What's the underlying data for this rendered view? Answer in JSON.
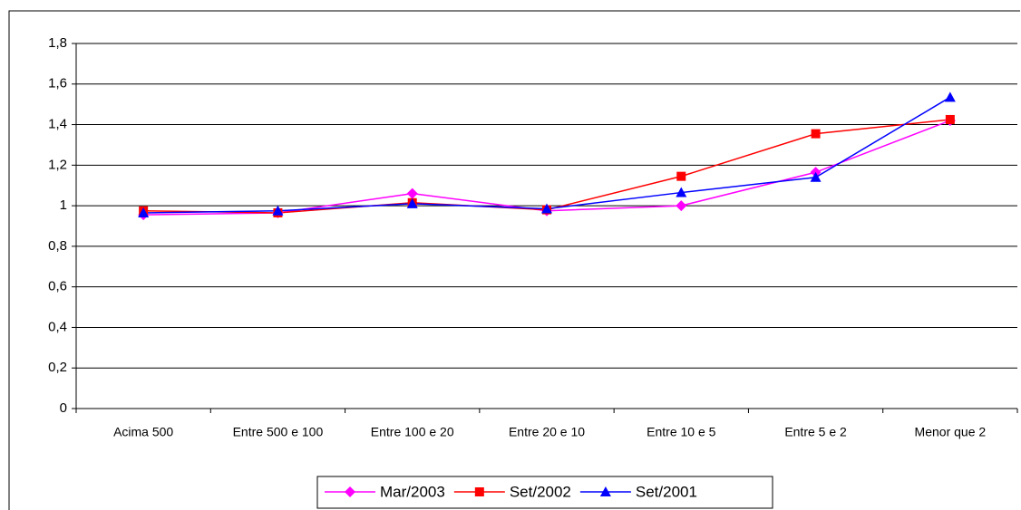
{
  "chart_data": {
    "type": "line",
    "categories": [
      "Acima 500",
      "Entre 500 e 100",
      "Entre 100 e 20",
      "Entre 20 e 10",
      "Entre 10 e 5",
      "Entre 5 e 2",
      "Menor que 2"
    ],
    "series": [
      {
        "name": "Mar/2003",
        "color": "#ff00ff",
        "marker": "diamond",
        "values": [
          0.955,
          0.965,
          1.06,
          0.975,
          1.0,
          1.165,
          1.42
        ]
      },
      {
        "name": "Set/2002",
        "color": "#ff0000",
        "marker": "square",
        "values": [
          0.975,
          0.965,
          1.015,
          0.98,
          1.145,
          1.355,
          1.425
        ]
      },
      {
        "name": "Set/2001",
        "color": "#0000ff",
        "marker": "triangle",
        "values": [
          0.965,
          0.975,
          1.01,
          0.985,
          1.065,
          1.14,
          1.535
        ]
      }
    ],
    "ylim": [
      0,
      1.8
    ],
    "yticks": [
      0,
      {
        "value": 0.2,
        "label": "0,2"
      },
      {
        "value": 0.4,
        "label": "0,4"
      },
      {
        "value": 0.6,
        "label": "0,6"
      },
      {
        "value": 0.8,
        "label": "0,8"
      },
      1,
      {
        "value": 1.2,
        "label": "1,2"
      },
      {
        "value": 1.4,
        "label": "1,4"
      },
      {
        "value": 1.6,
        "label": "1,6"
      },
      {
        "value": 1.8,
        "label": "1,8"
      }
    ],
    "grid": true,
    "legend": "bottom"
  }
}
